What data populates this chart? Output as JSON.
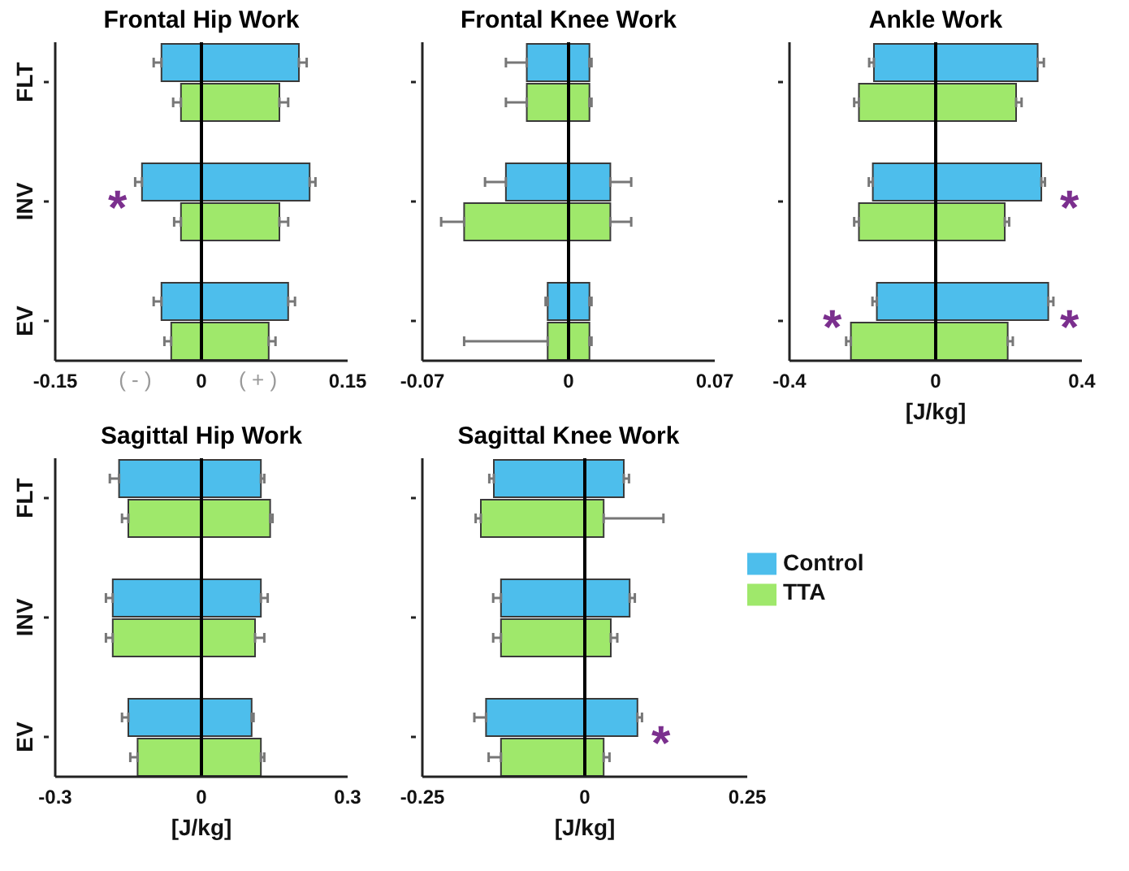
{
  "chart_data": [
    {
      "type": "bar",
      "title": "Frontal Hip Work",
      "orientation": "horizontal",
      "stacked": true,
      "categories": [
        "FLT",
        null,
        null,
        "INV",
        null,
        null,
        "EV",
        null
      ],
      "xlim": [
        -0.15,
        0.15
      ],
      "xticks": [
        -0.15,
        0,
        0.15
      ],
      "grid": false,
      "legend": false,
      "ref_lines": [
        {
          "axis": "x",
          "value": 0
        }
      ],
      "series": [
        {
          "color": "#4dbeec",
          "values": [
            0.1,
            null,
            null,
            0.111,
            null,
            null,
            0.089,
            null
          ],
          "errors": [
            0.008,
            null,
            null,
            0.006,
            null,
            null,
            0.007,
            null
          ]
        },
        {
          "color": "#4dbeec",
          "values": [
            -0.041,
            null,
            null,
            -0.061,
            null,
            null,
            -0.041,
            null
          ],
          "errors": [
            0.008,
            null,
            null,
            0.007,
            null,
            null,
            0.008,
            null
          ]
        },
        {
          "color": "#9fe86b",
          "values": [
            null,
            0.08,
            null,
            null,
            0.08,
            null,
            null,
            0.069
          ],
          "errors": [
            null,
            0.009,
            null,
            null,
            0.009,
            null,
            null,
            0.007
          ]
        },
        {
          "color": "#9fe86b",
          "values": [
            null,
            -0.021,
            null,
            null,
            -0.021,
            null,
            null,
            -0.031
          ],
          "errors": [
            null,
            0.008,
            null,
            null,
            0.007,
            null,
            null,
            0.007
          ]
        }
      ],
      "annotations": [
        "*",
        "( - )",
        "( + )"
      ]
    },
    {
      "type": "bar",
      "title": "Frontal Knee Work",
      "orientation": "horizontal",
      "stacked": true,
      "categories": [
        null,
        null,
        null,
        null,
        null,
        null,
        null,
        null
      ],
      "xlim": [
        -0.07,
        0.07
      ],
      "xticks": [
        -0.07,
        0,
        0.07
      ],
      "grid": false,
      "legend": false,
      "ref_lines": [
        {
          "axis": "x",
          "value": 0
        }
      ],
      "series": [
        {
          "color": "#4dbeec",
          "values": [
            0.01,
            null,
            null,
            0.02,
            null,
            null,
            0.01,
            null
          ],
          "errors": [
            0.001,
            null,
            null,
            0.01,
            null,
            null,
            0.001,
            null
          ]
        },
        {
          "color": "#4dbeec",
          "values": [
            -0.02,
            null,
            null,
            -0.03,
            null,
            null,
            -0.01,
            null
          ],
          "errors": [
            0.01,
            null,
            null,
            0.01,
            null,
            null,
            0.001,
            null
          ]
        },
        {
          "color": "#9fe86b",
          "values": [
            null,
            0.01,
            null,
            null,
            0.02,
            null,
            null,
            0.01
          ],
          "errors": [
            null,
            0.001,
            null,
            null,
            0.01,
            null,
            null,
            0.001
          ]
        },
        {
          "color": "#9fe86b",
          "values": [
            null,
            -0.02,
            null,
            null,
            -0.05,
            null,
            null,
            -0.01
          ],
          "errors": [
            null,
            0.01,
            null,
            null,
            0.011,
            null,
            null,
            [
              -0.05,
              -0.01
            ]
          ]
        }
      ]
    },
    {
      "type": "bar",
      "title": "Ankle Work",
      "xlabel": "[J/kg]",
      "orientation": "horizontal",
      "stacked": true,
      "categories": [
        null,
        null,
        null,
        null,
        null,
        null,
        null,
        null
      ],
      "xlim": [
        -0.4,
        0.4
      ],
      "xticks": [
        -0.4,
        0,
        0.4
      ],
      "grid": false,
      "legend": false,
      "ref_lines": [
        {
          "axis": "x",
          "value": 0
        }
      ],
      "series": [
        {
          "color": "#4dbeec",
          "values": [
            0.279,
            null,
            null,
            0.289,
            null,
            null,
            0.308,
            null
          ],
          "errors": [
            0.017,
            null,
            null,
            0.01,
            null,
            null,
            0.014,
            null
          ]
        },
        {
          "color": "#4dbeec",
          "values": [
            -0.169,
            null,
            null,
            -0.172,
            null,
            null,
            -0.161,
            null
          ],
          "errors": [
            0.013,
            null,
            null,
            0.011,
            null,
            null,
            0.012,
            null
          ]
        },
        {
          "color": "#9fe86b",
          "values": [
            null,
            0.22,
            null,
            null,
            0.189,
            null,
            null,
            0.197
          ],
          "errors": [
            null,
            0.015,
            null,
            null,
            0.012,
            null,
            null,
            0.014
          ]
        },
        {
          "color": "#9fe86b",
          "values": [
            null,
            -0.21,
            null,
            null,
            -0.21,
            null,
            null,
            -0.232
          ],
          "errors": [
            null,
            0.013,
            null,
            null,
            0.013,
            null,
            null,
            0.013
          ]
        }
      ],
      "annotations": [
        "*",
        "*",
        "*"
      ]
    },
    {
      "type": "bar",
      "title": "Sagittal Hip Work",
      "xlabel": "[J/kg]",
      "orientation": "horizontal",
      "stacked": true,
      "categories": [
        "FLT",
        null,
        null,
        "INV",
        null,
        null,
        "EV",
        null
      ],
      "xlim": [
        -0.3,
        0.3
      ],
      "xticks": [
        -0.3,
        0,
        0.3
      ],
      "grid": false,
      "legend": false,
      "ref_lines": [
        {
          "axis": "x",
          "value": 0
        }
      ],
      "series": [
        {
          "color": "#4dbeec",
          "values": [
            0.122,
            null,
            null,
            0.122,
            null,
            null,
            0.103,
            null
          ],
          "errors": [
            0.007,
            null,
            null,
            0.014,
            null,
            null,
            0.004,
            null
          ]
        },
        {
          "color": "#4dbeec",
          "values": [
            -0.169,
            null,
            null,
            -0.182,
            null,
            null,
            -0.15,
            null
          ],
          "errors": [
            0.019,
            null,
            null,
            0.014,
            null,
            null,
            0.013,
            null
          ]
        },
        {
          "color": "#9fe86b",
          "values": [
            null,
            0.141,
            null,
            null,
            0.11,
            null,
            null,
            0.122
          ],
          "errors": [
            null,
            0.005,
            null,
            null,
            0.019,
            null,
            null,
            0.007
          ]
        },
        {
          "color": "#9fe86b",
          "values": [
            null,
            -0.15,
            null,
            null,
            -0.182,
            null,
            null,
            -0.131
          ],
          "errors": [
            null,
            0.013,
            null,
            null,
            0.014,
            null,
            null,
            0.015
          ]
        }
      ]
    },
    {
      "type": "bar",
      "title": "Sagittal Knee Work",
      "xlabel": "[J/kg]",
      "orientation": "horizontal",
      "stacked": true,
      "categories": [
        null,
        null,
        null,
        null,
        null,
        null,
        null,
        null
      ],
      "xlim": [
        -0.25,
        0.25
      ],
      "xticks": [
        -0.25,
        0,
        0.25
      ],
      "grid": false,
      "legend": "right",
      "ref_lines": [
        {
          "axis": "x",
          "value": 0
        }
      ],
      "series": [
        {
          "name": "Control",
          "color": "#4dbeec",
          "values": [
            0.06,
            null,
            null,
            0.069,
            null,
            null,
            0.081,
            null
          ],
          "errors": [
            0.008,
            null,
            null,
            0.008,
            null,
            null,
            0.007,
            null
          ]
        },
        {
          "color": "#4dbeec",
          "values": [
            -0.14,
            null,
            null,
            -0.129,
            null,
            null,
            -0.152,
            null
          ],
          "errors": [
            0.007,
            null,
            null,
            0.012,
            null,
            null,
            0.018,
            null
          ]
        },
        {
          "name": "TTA",
          "color": "#9fe86b",
          "values": [
            null,
            0.029,
            null,
            null,
            0.04,
            null,
            null,
            0.029
          ],
          "errors": [
            null,
            0.092,
            null,
            null,
            0.01,
            null,
            null,
            0.009
          ]
        },
        {
          "color": "#9fe86b",
          "values": [
            null,
            -0.16,
            null,
            null,
            -0.129,
            null,
            null,
            -0.129
          ],
          "errors": [
            null,
            0.008,
            null,
            null,
            0.012,
            null,
            null,
            0.019
          ]
        }
      ],
      "annotations": [
        "*"
      ]
    }
  ]
}
